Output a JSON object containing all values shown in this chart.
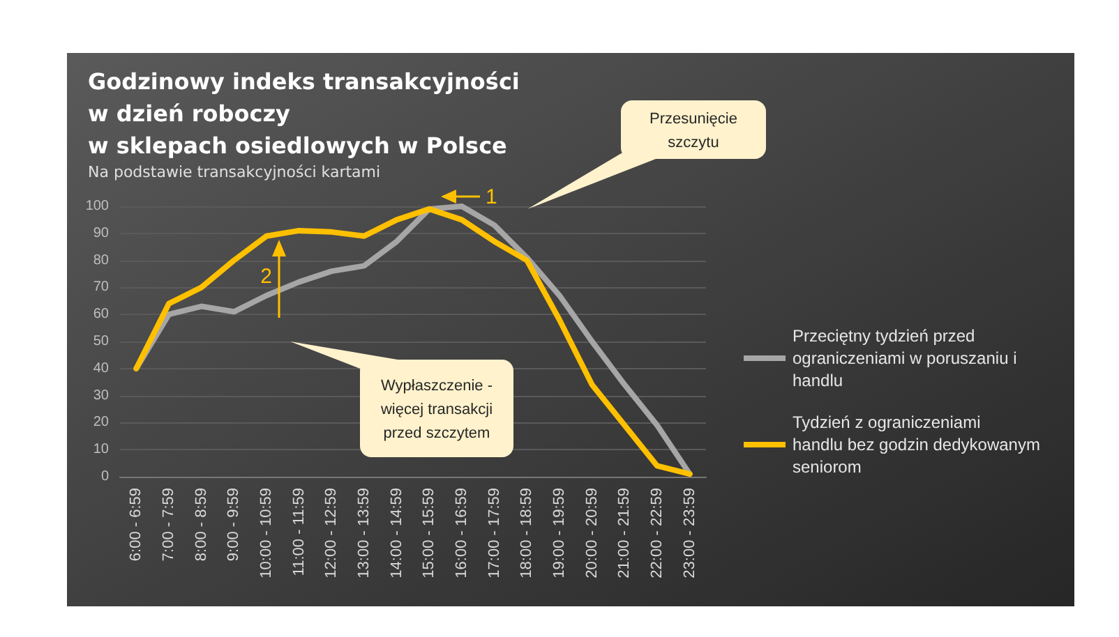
{
  "chart_data": {
    "type": "line",
    "title": "Godzinowy indeks transakcyjności\nw dzień roboczy\nw sklepach osiedlowych w Polsce",
    "subtitle": "Na podstawie transakcyjności kartami",
    "categories": [
      "6:00 - 6:59",
      "7:00 - 7:59",
      "8:00 - 8:59",
      "9:00 - 9:59",
      "10:00 - 10:59",
      "11:00 - 11:59",
      "12:00 - 12:59",
      "13:00 - 13:59",
      "14:00 - 14:59",
      "15:00 - 15:59",
      "16:00 - 16:59",
      "17:00 - 17:59",
      "18:00 - 18:59",
      "19:00 - 19:59",
      "20:00 - 20:59",
      "21:00 - 21:59",
      "22:00 - 22:59",
      "23:00 - 23:59"
    ],
    "series": [
      {
        "name": "Przeciętny tydzień przed ograniczeniami w poruszaniu i handlu",
        "color": "#a6a6a6",
        "values": [
          40,
          60,
          63,
          61,
          67,
          72,
          76,
          78,
          87,
          99,
          100,
          93,
          81,
          67,
          50,
          34,
          19,
          1
        ]
      },
      {
        "name": "Tydzień z ograniczeniami handlu bez godzin dedykowanym seniorom",
        "color": "#ffc000",
        "values": [
          40,
          64,
          70,
          80,
          89,
          91,
          90.5,
          89,
          95,
          99,
          95,
          87,
          80,
          58,
          34,
          19,
          4,
          1
        ]
      }
    ],
    "ylim": [
      0,
      100
    ],
    "yticks": [
      0,
      10,
      20,
      30,
      40,
      50,
      60,
      70,
      80,
      90,
      100
    ],
    "grid": "y",
    "legend": "right",
    "marker": "none",
    "line_style": "solid",
    "annotations": [
      "Przesunięcie\nszczytu",
      "Wypłaszczenie -\nwięcej transakcji\nprzed szczytem",
      "1",
      "2"
    ]
  }
}
